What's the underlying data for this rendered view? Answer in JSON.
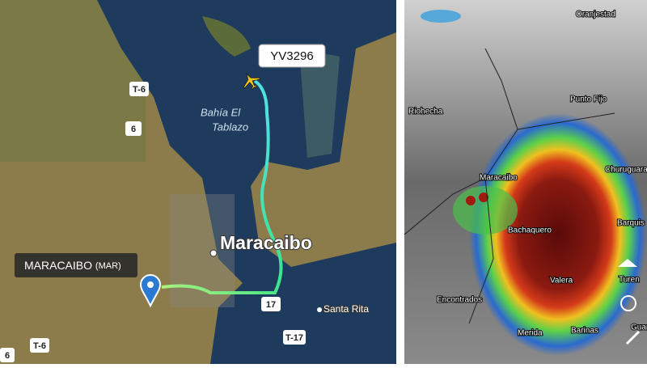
{
  "flight": {
    "callsign": "YV3296"
  },
  "airport": {
    "name": "MARACAIBO",
    "code": "(MAR)"
  },
  "left_map": {
    "labels": [
      "Bahía El",
      "Tablazo",
      "Maracaibo",
      "Santa Rita"
    ],
    "roads": [
      "T-6",
      "6",
      "17",
      "T-17",
      "T-6",
      "6"
    ]
  },
  "right_map": {
    "labels": [
      "Oranjestad",
      "Punto Fijo",
      "Riohecha",
      "Maracaibo",
      "Churuguara",
      "Bachaquero",
      "Barquis",
      "Valera",
      "Turen",
      "Encontrados",
      "Merida",
      "Barinas",
      "Guar"
    ]
  }
}
